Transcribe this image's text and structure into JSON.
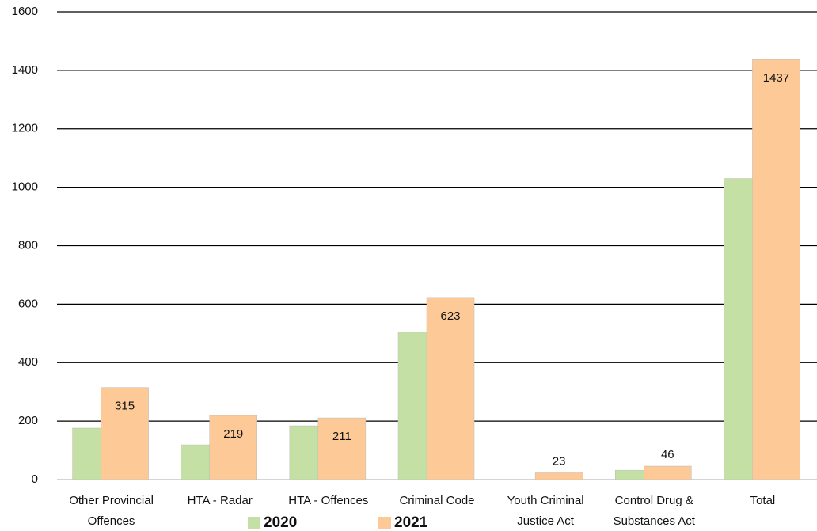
{
  "chart_data": {
    "type": "bar",
    "categories": [
      "Other Provincial Offences",
      "HTA - Radar",
      "HTA - Offences",
      "Criminal Code",
      "Youth Criminal Justice Act",
      "Control Drug & Substances Act",
      "Total"
    ],
    "series": [
      {
        "name": "2020",
        "color": "#c5e0a4",
        "values": [
          176,
          119,
          184,
          504,
          null,
          32,
          1030
        ]
      },
      {
        "name": "2021",
        "color": "#fdc996",
        "values": [
          315,
          219,
          211,
          623,
          23,
          46,
          1437
        ],
        "value_labels": true
      }
    ],
    "ylim": [
      0,
      1600
    ],
    "yticks": [
      0,
      200,
      400,
      600,
      800,
      1000,
      1200,
      1400,
      1600
    ],
    "grid": true
  }
}
